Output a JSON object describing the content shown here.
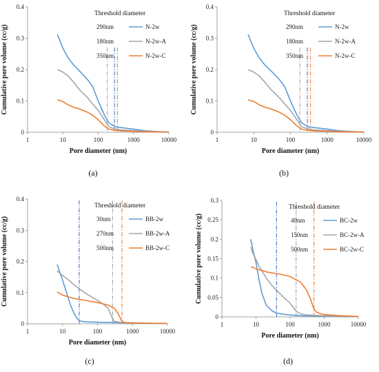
{
  "chart_data": [
    {
      "type": "line",
      "panel_label": "(a)",
      "xlabel": "Pore diameter (nm)",
      "ylabel": "Cumulative pore volume (cc/g)",
      "xscale": "log",
      "xlim": [
        1,
        10000
      ],
      "ylim": [
        0,
        0.4
      ],
      "xticks": [
        "1",
        "10",
        "100",
        "1000",
        "10000"
      ],
      "yticks": [
        "0",
        "0.1",
        "0.2",
        "0.3",
        "0.4"
      ],
      "legend_title": "Threshold diameter",
      "thresholds": [
        {
          "label": "290nm",
          "x": 290,
          "color": "#4472C4"
        },
        {
          "label": "180nm",
          "x": 180,
          "color": "#A5A5A5"
        },
        {
          "label": "350nm",
          "x": 350,
          "color": "#ED7D31"
        }
      ],
      "series": [
        {
          "name": "N-2w",
          "color": "#5B9BD5",
          "x": [
            7,
            10,
            14,
            20,
            30,
            50,
            70,
            100,
            150,
            200,
            300,
            500,
            1000,
            2000,
            5000,
            10000
          ],
          "y": [
            0.312,
            0.268,
            0.238,
            0.215,
            0.195,
            0.168,
            0.145,
            0.1,
            0.055,
            0.03,
            0.018,
            0.014,
            0.01,
            0.005,
            0.002,
            0.001
          ]
        },
        {
          "name": "N-2w-A",
          "color": "#A5A5A5",
          "x": [
            7,
            10,
            14,
            20,
            30,
            50,
            70,
            100,
            150,
            200,
            300,
            500,
            1000,
            2000,
            5000,
            10000
          ],
          "y": [
            0.2,
            0.192,
            0.18,
            0.16,
            0.135,
            0.11,
            0.09,
            0.07,
            0.04,
            0.018,
            0.01,
            0.007,
            0.005,
            0.003,
            0.002,
            0.001
          ]
        },
        {
          "name": "N-2w-C",
          "color": "#ED7D31",
          "x": [
            7,
            10,
            14,
            20,
            30,
            50,
            70,
            100,
            150,
            200,
            300,
            500,
            1000,
            2000,
            5000,
            10000
          ],
          "y": [
            0.104,
            0.098,
            0.088,
            0.08,
            0.074,
            0.064,
            0.054,
            0.04,
            0.02,
            0.01,
            0.006,
            0.004,
            0.003,
            0.002,
            0.001,
            0.0
          ]
        }
      ]
    },
    {
      "type": "line",
      "panel_label": "(b)",
      "xlabel": "Pore diameter (nm)",
      "ylabel": "Cumulative pore volume (cc/g)",
      "xscale": "log",
      "xlim": [
        1,
        10000
      ],
      "ylim": [
        0,
        0.4
      ],
      "xticks": [
        "1",
        "10",
        "100",
        "1000",
        "10000"
      ],
      "yticks": [
        "0",
        "0.1",
        "0.2",
        "0.3",
        "0.4"
      ],
      "legend_title": "Threshold diameter",
      "thresholds": [
        {
          "label": "290nm",
          "x": 290,
          "color": "#4472C4"
        },
        {
          "label": "180nm",
          "x": 180,
          "color": "#A5A5A5"
        },
        {
          "label": "350nm",
          "x": 350,
          "color": "#ED7D31"
        }
      ],
      "series": [
        {
          "name": "N-2w",
          "color": "#5B9BD5",
          "x": [
            7,
            10,
            14,
            20,
            30,
            50,
            70,
            100,
            150,
            200,
            300,
            500,
            1000,
            2000,
            5000,
            10000
          ],
          "y": [
            0.312,
            0.268,
            0.238,
            0.215,
            0.195,
            0.168,
            0.145,
            0.1,
            0.055,
            0.03,
            0.018,
            0.014,
            0.01,
            0.005,
            0.002,
            0.001
          ]
        },
        {
          "name": "N-2w-A",
          "color": "#A5A5A5",
          "x": [
            7,
            10,
            14,
            20,
            30,
            50,
            70,
            100,
            150,
            200,
            300,
            500,
            1000,
            2000,
            5000,
            10000
          ],
          "y": [
            0.2,
            0.192,
            0.18,
            0.16,
            0.135,
            0.11,
            0.09,
            0.07,
            0.04,
            0.018,
            0.01,
            0.007,
            0.005,
            0.003,
            0.002,
            0.001
          ]
        },
        {
          "name": "N-2w-C",
          "color": "#ED7D31",
          "x": [
            7,
            10,
            14,
            20,
            30,
            50,
            70,
            100,
            150,
            200,
            300,
            500,
            1000,
            2000,
            5000,
            10000
          ],
          "y": [
            0.104,
            0.098,
            0.088,
            0.08,
            0.074,
            0.064,
            0.054,
            0.04,
            0.02,
            0.01,
            0.006,
            0.004,
            0.003,
            0.002,
            0.001,
            0.0
          ]
        }
      ]
    },
    {
      "type": "line",
      "panel_label": "(c)",
      "xlabel": "Pore diameter (nm)",
      "ylabel": "Cumulative pore volume (cc/g)",
      "xscale": "log",
      "xlim": [
        1,
        10000
      ],
      "ylim": [
        0,
        0.4
      ],
      "xticks": [
        "1",
        "10",
        "100",
        "1000",
        "10000"
      ],
      "yticks": [
        "0",
        "0.1",
        "0.2",
        "0.3",
        "0.4"
      ],
      "legend_title": "Threshold diameter",
      "thresholds": [
        {
          "label": "30nm",
          "x": 30,
          "color": "#4472C4"
        },
        {
          "label": "270nm",
          "x": 270,
          "color": "#A5A5A5"
        },
        {
          "label": "500nm",
          "x": 500,
          "color": "#ED7D31"
        }
      ],
      "series": [
        {
          "name": "BB-2w",
          "color": "#5B9BD5",
          "x": [
            7,
            8,
            10,
            13,
            17,
            22,
            27,
            30,
            35,
            50,
            100,
            500,
            1000,
            10000
          ],
          "y": [
            0.19,
            0.172,
            0.14,
            0.1,
            0.06,
            0.03,
            0.015,
            0.01,
            0.008,
            0.006,
            0.005,
            0.003,
            0.002,
            0.001
          ]
        },
        {
          "name": "BB-2w-A",
          "color": "#A5A5A5",
          "x": [
            7,
            10,
            15,
            20,
            30,
            50,
            100,
            150,
            200,
            250,
            300,
            500,
            1000,
            10000
          ],
          "y": [
            0.17,
            0.155,
            0.14,
            0.128,
            0.112,
            0.095,
            0.075,
            0.062,
            0.05,
            0.025,
            0.008,
            0.004,
            0.003,
            0.001
          ]
        },
        {
          "name": "BB-2w-C",
          "color": "#ED7D31",
          "x": [
            7,
            10,
            15,
            20,
            30,
            50,
            100,
            200,
            300,
            400,
            500,
            600,
            1000,
            10000
          ],
          "y": [
            0.102,
            0.092,
            0.086,
            0.082,
            0.078,
            0.074,
            0.068,
            0.06,
            0.05,
            0.03,
            0.008,
            0.004,
            0.002,
            0.001
          ]
        }
      ]
    },
    {
      "type": "line",
      "panel_label": "(d)",
      "xlabel": "Pore diameter (nm)",
      "ylabel": "Cumulative pore volume (cc/g)",
      "xscale": "log",
      "xlim": [
        1,
        10000
      ],
      "ylim": [
        0,
        0.3
      ],
      "xticks": [
        "1",
        "10",
        "100",
        "1000",
        "10000"
      ],
      "yticks": [
        "0",
        "0.05",
        "0.1",
        "0.15",
        "0.2",
        "0.25",
        "0.3"
      ],
      "legend_title": "Threshold diameter",
      "thresholds": [
        {
          "label": "40nm",
          "x": 40,
          "color": "#4472C4"
        },
        {
          "label": "150nm",
          "x": 150,
          "color": "#A5A5A5"
        },
        {
          "label": "500nm",
          "x": 500,
          "color": "#ED7D31"
        }
      ],
      "series": [
        {
          "name": "BC-2w",
          "color": "#5B9BD5",
          "x": [
            7,
            8,
            10,
            12,
            15,
            20,
            30,
            40,
            60,
            100,
            200,
            1000,
            10000
          ],
          "y": [
            0.2,
            0.175,
            0.14,
            0.1,
            0.06,
            0.03,
            0.015,
            0.01,
            0.007,
            0.005,
            0.003,
            0.002,
            0.001
          ]
        },
        {
          "name": "BC-2w-A",
          "color": "#A5A5A5",
          "x": [
            7,
            8,
            10,
            12,
            15,
            20,
            30,
            50,
            100,
            150,
            200,
            300,
            1000,
            10000
          ],
          "y": [
            0.18,
            0.165,
            0.148,
            0.132,
            0.118,
            0.1,
            0.08,
            0.06,
            0.035,
            0.015,
            0.008,
            0.005,
            0.003,
            0.001
          ]
        },
        {
          "name": "BC-2w-C",
          "color": "#ED7D31",
          "x": [
            7,
            10,
            20,
            50,
            100,
            200,
            300,
            400,
            500,
            600,
            800,
            1000,
            3000,
            10000
          ],
          "y": [
            0.13,
            0.124,
            0.116,
            0.11,
            0.104,
            0.09,
            0.07,
            0.045,
            0.02,
            0.012,
            0.008,
            0.006,
            0.003,
            0.001
          ]
        }
      ]
    }
  ]
}
